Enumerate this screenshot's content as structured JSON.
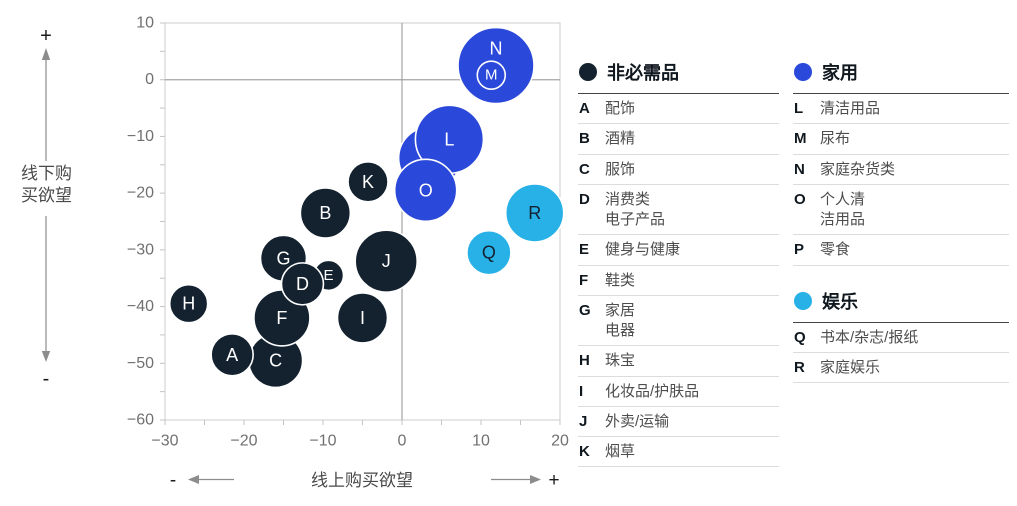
{
  "chart_data": {
    "type": "scatter",
    "title": "",
    "x_axis": {
      "label": "线上购买欲望",
      "min": -30,
      "max": 20,
      "major_ticks": [
        -30,
        -20,
        -10,
        0,
        10,
        20
      ],
      "minor_step": 5,
      "pos_symbol": "+",
      "neg_symbol": "-"
    },
    "y_axis": {
      "label": "线下购买欲望",
      "label_lines": [
        "线下购",
        "买欲望"
      ],
      "min": -60,
      "max": 10,
      "major_ticks": [
        10,
        0,
        -10,
        -20,
        -30,
        -40,
        -50,
        -60
      ],
      "minor_step": 5,
      "pos_symbol": "+",
      "neg_symbol": "-"
    },
    "zero_lines": true,
    "grid": false,
    "legend_position": "right",
    "groups": [
      {
        "id": "nonessential",
        "name": "非必需品",
        "color": "#14222f",
        "label_color": "#ffffff"
      },
      {
        "id": "household",
        "name": "家用",
        "color": "#2a48d9",
        "label_color": "#ffffff"
      },
      {
        "id": "entertainment",
        "name": "娱乐",
        "color": "#27b1e7",
        "label_color": "#14222f"
      }
    ],
    "bubbles": [
      {
        "id": "A",
        "label": "配饰",
        "group": "nonessential",
        "x": -21.5,
        "y": -48.5,
        "r": 21
      },
      {
        "id": "B",
        "label": "酒精",
        "group": "nonessential",
        "x": -9.7,
        "y": -23.5,
        "r": 25
      },
      {
        "id": "C",
        "label": "服饰",
        "group": "nonessential",
        "x": -16,
        "y": -49.5,
        "r": 27
      },
      {
        "id": "D",
        "label": "消费类电子产品",
        "group": "nonessential",
        "x": -12.6,
        "y": -36,
        "r": 21
      },
      {
        "id": "E",
        "label": "健身与健康",
        "group": "nonessential",
        "x": -9.3,
        "y": -34.5,
        "r": 15
      },
      {
        "id": "F",
        "label": "鞋类",
        "group": "nonessential",
        "x": -15.2,
        "y": -42,
        "r": 28
      },
      {
        "id": "G",
        "label": "家居电器",
        "group": "nonessential",
        "x": -15,
        "y": -31.5,
        "r": 23
      },
      {
        "id": "H",
        "label": "珠宝",
        "group": "nonessential",
        "x": -27,
        "y": -39.5,
        "r": 19
      },
      {
        "id": "I",
        "label": "化妆品/护肤品",
        "group": "nonessential",
        "x": -5,
        "y": -42,
        "r": 25
      },
      {
        "id": "J",
        "label": "外卖/运输",
        "group": "nonessential",
        "x": -2,
        "y": -32,
        "r": 31
      },
      {
        "id": "K",
        "label": "烟草",
        "group": "nonessential",
        "x": -4.3,
        "y": -18,
        "r": 20
      },
      {
        "id": "L",
        "label": "清洁用品",
        "group": "household",
        "x": 6,
        "y": -10.5,
        "r": 34
      },
      {
        "id": "M",
        "label": "尿布",
        "group": "household",
        "x": 11.3,
        "y": 0.8,
        "r": 14
      },
      {
        "id": "N",
        "label": "家庭杂货类",
        "group": "household",
        "x": 11.9,
        "y": 2.5,
        "r": 38,
        "label_dy": -17
      },
      {
        "id": "O",
        "label": "个人清洁用品",
        "group": "household",
        "x": 3,
        "y": -19.5,
        "r": 31
      },
      {
        "id": "P",
        "label": "零食",
        "group": "household",
        "x": 3.5,
        "y": -13.8,
        "r": 31
      },
      {
        "id": "Q",
        "label": "书本/杂志/报纸",
        "group": "entertainment",
        "x": 11,
        "y": -30.5,
        "r": 22
      },
      {
        "id": "R",
        "label": "家庭娱乐",
        "group": "entertainment",
        "x": 16.8,
        "y": -23.5,
        "r": 29
      }
    ],
    "draw_order": [
      "H",
      "B",
      "K",
      "G",
      "E",
      "C",
      "F",
      "A",
      "I",
      "J",
      "D",
      "Q",
      "R",
      "P",
      "L",
      "O",
      "N",
      "M"
    ]
  },
  "legend": {
    "columns": [
      {
        "sections": [
          {
            "group": "nonessential",
            "items": [
              {
                "key": "A",
                "label": "配饰"
              },
              {
                "key": "B",
                "label": "酒精"
              },
              {
                "key": "C",
                "label": "服饰"
              },
              {
                "key": "D",
                "label": "消费类\n电子产品"
              },
              {
                "key": "E",
                "label": "健身与健康"
              },
              {
                "key": "F",
                "label": "鞋类"
              },
              {
                "key": "G",
                "label": "家居\n电器"
              },
              {
                "key": "H",
                "label": "珠宝"
              },
              {
                "key": "I",
                "label": "化妆品/护肤品"
              },
              {
                "key": "J",
                "label": "外卖/运输"
              },
              {
                "key": "K",
                "label": "烟草"
              }
            ]
          }
        ]
      },
      {
        "sections": [
          {
            "group": "household",
            "items": [
              {
                "key": "L",
                "label": "清洁用品"
              },
              {
                "key": "M",
                "label": "尿布"
              },
              {
                "key": "N",
                "label": "家庭杂货类"
              },
              {
                "key": "O",
                "label": "个人清\n洁用品"
              },
              {
                "key": "P",
                "label": "零食"
              }
            ]
          },
          {
            "group": "entertainment",
            "items": [
              {
                "key": "Q",
                "label": "书本/杂志/报纸"
              },
              {
                "key": "R",
                "label": "家庭娱乐"
              }
            ]
          }
        ]
      }
    ]
  },
  "colors": {
    "plot_border": "#cccccc",
    "zero_line": "#a5a5a5",
    "tick": "#c4c4c4",
    "tick_label": "#707070",
    "axis_label": "#4a4a4a",
    "annotation_arrow": "#8c8c8c",
    "annotation_sign": "#1a1a1a",
    "bubble_stroke": "#ffffff"
  }
}
